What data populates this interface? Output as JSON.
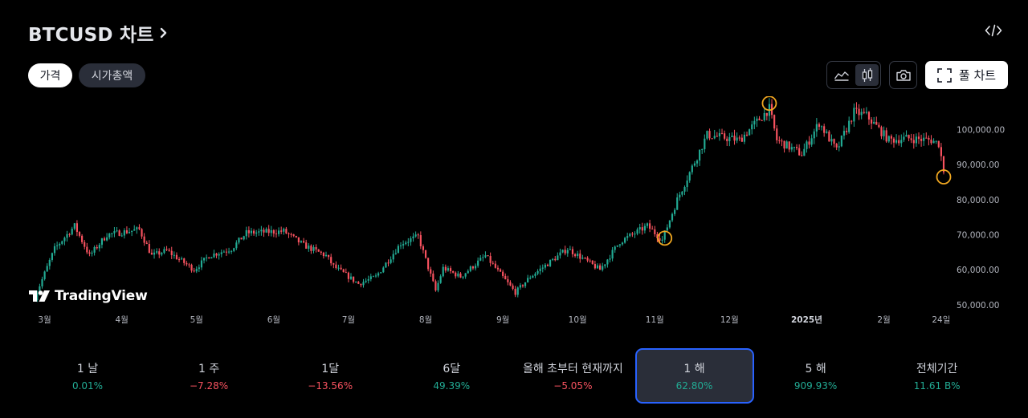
{
  "header": {
    "title": "BTCUSD 차트"
  },
  "icons": {
    "embed": "code-embed-icon",
    "title_chevron": "chevron-right-icon",
    "area_chart": "area-chart-icon",
    "candle_chart": "candlestick-icon",
    "snapshot": "camera-icon",
    "full_chart": "fullscreen-icon"
  },
  "tabs": [
    {
      "label": "가격",
      "active": true
    },
    {
      "label": "시가총액",
      "active": false
    }
  ],
  "toolbar": {
    "full_chart_label": "풀 차트",
    "active_chart_type": "candlestick"
  },
  "branding": {
    "logo_text": "TradingView"
  },
  "colors": {
    "up": "#22ab94",
    "down": "#f7525f",
    "accent": "#2962ff",
    "marker": "#f0a720",
    "background": "#000000"
  },
  "chart_data": {
    "type": "candlestick",
    "symbol": "BTCUSD",
    "x_ticks": [
      {
        "label": "3월",
        "date": "2024-03-01"
      },
      {
        "label": "4월",
        "date": "2024-04-01"
      },
      {
        "label": "5월",
        "date": "2024-05-01"
      },
      {
        "label": "6월",
        "date": "2024-06-01"
      },
      {
        "label": "7월",
        "date": "2024-07-01"
      },
      {
        "label": "8월",
        "date": "2024-08-01"
      },
      {
        "label": "9월",
        "date": "2024-09-01"
      },
      {
        "label": "10월",
        "date": "2024-10-01"
      },
      {
        "label": "11월",
        "date": "2024-11-01"
      },
      {
        "label": "12월",
        "date": "2024-12-01"
      },
      {
        "label": "2025년",
        "date": "2025-01-01",
        "bold": true
      },
      {
        "label": "2월",
        "date": "2025-02-01"
      },
      {
        "label": "24일",
        "date": "2025-02-24"
      }
    ],
    "y_ticks": [
      {
        "value": 50000,
        "label": "50,000.00"
      },
      {
        "value": 60000,
        "label": "60,000.00"
      },
      {
        "value": 70000,
        "label": "70,000.00"
      },
      {
        "value": 80000,
        "label": "80,000.00"
      },
      {
        "value": 90000,
        "label": "90,000.00"
      },
      {
        "value": 100000,
        "label": "100,000.00"
      }
    ],
    "ylim": [
      47000,
      109500
    ],
    "xlim": [
      "2024-02-24",
      "2025-02-25"
    ],
    "grid": false,
    "close_path": [
      [
        "2024-02-26",
        52000
      ],
      [
        "2024-03-05",
        66000
      ],
      [
        "2024-03-13",
        72500
      ],
      [
        "2024-03-19",
        64000
      ],
      [
        "2024-03-26",
        70000
      ],
      [
        "2024-04-08",
        71500
      ],
      [
        "2024-04-13",
        64000
      ],
      [
        "2024-04-19",
        65500
      ],
      [
        "2024-04-30",
        60000
      ],
      [
        "2024-05-06",
        64000
      ],
      [
        "2024-05-15",
        66000
      ],
      [
        "2024-05-21",
        70500
      ],
      [
        "2024-06-05",
        71000
      ],
      [
        "2024-06-13",
        67000
      ],
      [
        "2024-06-22",
        64000
      ],
      [
        "2024-06-25",
        61000
      ],
      [
        "2024-07-05",
        56000
      ],
      [
        "2024-07-12",
        58000
      ],
      [
        "2024-07-22",
        67500
      ],
      [
        "2024-07-29",
        69500
      ],
      [
        "2024-08-05",
        54000
      ],
      [
        "2024-08-08",
        60500
      ],
      [
        "2024-08-15",
        58000
      ],
      [
        "2024-08-25",
        64000
      ],
      [
        "2024-09-06",
        53500
      ],
      [
        "2024-09-12",
        58000
      ],
      [
        "2024-09-27",
        66000
      ],
      [
        "2024-10-10",
        60000
      ],
      [
        "2024-10-18",
        68000
      ],
      [
        "2024-10-29",
        72500
      ],
      [
        "2024-11-04",
        68500
      ],
      [
        "2024-11-10",
        80000
      ],
      [
        "2024-11-22",
        98500
      ],
      [
        "2024-12-05",
        97000
      ],
      [
        "2024-12-17",
        106000
      ],
      [
        "2024-12-20",
        97000
      ],
      [
        "2024-12-30",
        93000
      ],
      [
        "2025-01-06",
        102000
      ],
      [
        "2025-01-13",
        94000
      ],
      [
        "2025-01-20",
        105000
      ],
      [
        "2025-01-25",
        104000
      ],
      [
        "2025-02-03",
        97000
      ],
      [
        "2025-02-10",
        97500
      ],
      [
        "2025-02-20",
        97000
      ],
      [
        "2025-02-23",
        96000
      ],
      [
        "2025-02-25",
        88500
      ]
    ],
    "annotations": [
      {
        "type": "circle",
        "date": "2024-11-05",
        "value": 69000,
        "label": ""
      },
      {
        "type": "circle",
        "date": "2024-12-17",
        "value": 107500,
        "label": ""
      },
      {
        "type": "circle",
        "date": "2025-02-25",
        "value": 86500,
        "label": ""
      }
    ]
  },
  "periods": [
    {
      "label": "1 날",
      "change": "0.01%",
      "direction": "up",
      "selected": false
    },
    {
      "label": "1 주",
      "change": "−7.28%",
      "direction": "down",
      "selected": false
    },
    {
      "label": "1달",
      "change": "−13.56%",
      "direction": "down",
      "selected": false
    },
    {
      "label": "6달",
      "change": "49.39%",
      "direction": "up",
      "selected": false
    },
    {
      "label": "올해 초부터 현재까지",
      "change": "−5.05%",
      "direction": "down",
      "selected": false
    },
    {
      "label": "1 해",
      "change": "62.80%",
      "direction": "up",
      "selected": true
    },
    {
      "label": "5 해",
      "change": "909.93%",
      "direction": "up",
      "selected": false
    },
    {
      "label": "전체기간",
      "change": "11.61 B%",
      "direction": "up",
      "selected": false
    }
  ]
}
